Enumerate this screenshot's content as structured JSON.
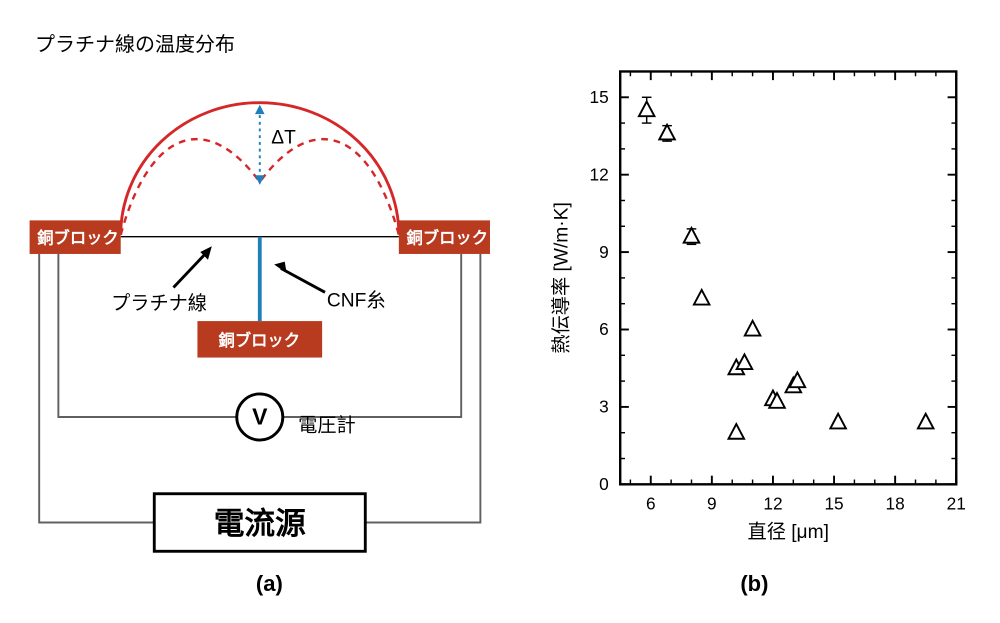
{
  "panelA": {
    "title": "プラチナ線の温度分布",
    "delta_label": "ΔT",
    "copper_block_label": "銅ブロック",
    "platinum_wire_label": "プラチナ線",
    "cnf_yarn_label": "CNF糸",
    "voltmeter_letter": "V",
    "voltmeter_label": "電圧計",
    "current_source_label": "電流源",
    "caption": "(a)",
    "colors": {
      "copper": "#b83a1f",
      "arc_solid": "#d62728",
      "arc_dashed": "#d62728",
      "cnf_line": "#1f7fb8",
      "wire": "#606060",
      "black": "#000000"
    }
  },
  "panelB": {
    "type": "scatter",
    "xlabel": "直径 [μm]",
    "ylabel": "熱伝導率 [W/m·K]",
    "caption": "(b)",
    "xlim": [
      4.5,
      21
    ],
    "ylim": [
      0,
      16
    ],
    "xticks": [
      6,
      9,
      12,
      15,
      18,
      21
    ],
    "yticks": [
      0,
      3,
      6,
      9,
      12,
      15
    ],
    "axis_color": "#000000",
    "marker_stroke": "#000000",
    "marker_fill": "none",
    "marker_size": 9,
    "background": "#ffffff",
    "title_fontsize": 20,
    "label_fontsize": 20,
    "tick_fontsize": 18,
    "points": [
      {
        "x": 5.8,
        "y": 14.5,
        "err": 0.5
      },
      {
        "x": 6.8,
        "y": 13.6,
        "err": 0.3
      },
      {
        "x": 8.0,
        "y": 9.6,
        "err": 0.3
      },
      {
        "x": 8.5,
        "y": 7.2,
        "err": 0
      },
      {
        "x": 10.2,
        "y": 4.5,
        "err": 0
      },
      {
        "x": 10.6,
        "y": 4.7,
        "err": 0
      },
      {
        "x": 10.2,
        "y": 2.0,
        "err": 0
      },
      {
        "x": 11.0,
        "y": 6.0,
        "err": 0
      },
      {
        "x": 12.0,
        "y": 3.3,
        "err": 0
      },
      {
        "x": 12.2,
        "y": 3.2,
        "err": 0
      },
      {
        "x": 13.0,
        "y": 3.8,
        "err": 0
      },
      {
        "x": 13.2,
        "y": 4.0,
        "err": 0
      },
      {
        "x": 15.2,
        "y": 2.4,
        "err": 0
      },
      {
        "x": 19.5,
        "y": 2.4,
        "err": 0
      }
    ]
  }
}
